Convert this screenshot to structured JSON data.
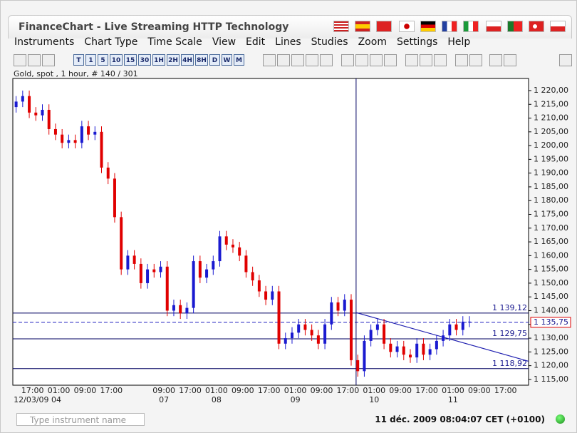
{
  "window": {
    "title": "FinanceChart - Live Streaming HTTP Technology"
  },
  "menu": [
    "Instruments",
    "Chart Type",
    "Time Scale",
    "View",
    "Edit",
    "Lines",
    "Studies",
    "Zoom",
    "Settings",
    "Help"
  ],
  "toolbar": {
    "timeframes": [
      "T",
      "1",
      "5",
      "10",
      "15",
      "30",
      "1H",
      "2H",
      "4H",
      "8H",
      "D",
      "W",
      "M"
    ]
  },
  "info": "Gold, spot , 1 hour, # 140 / 301",
  "chart_data": {
    "type": "candlestick",
    "x": [
      -5,
      -3,
      -1,
      1,
      3,
      5,
      7,
      9,
      11,
      13,
      15,
      17,
      19,
      21,
      23,
      25,
      27,
      29,
      31,
      33,
      35,
      37,
      39,
      41,
      43,
      45,
      47,
      49,
      51,
      53,
      55,
      57,
      59,
      61,
      63,
      65,
      67,
      69,
      71,
      73,
      75,
      77,
      79,
      81,
      83,
      85,
      87,
      89,
      91,
      93,
      95,
      97,
      99,
      101,
      103,
      105,
      107,
      109,
      111,
      113,
      115,
      117,
      119,
      121,
      123,
      125,
      127,
      129,
      131,
      133
    ],
    "open": [
      1214,
      1216,
      1218,
      1212,
      1211,
      1213,
      1206,
      1204,
      1201,
      1202,
      1201,
      1207,
      1204,
      1205,
      1192,
      1188,
      1174,
      1155,
      1160,
      1157,
      1150,
      1155,
      1154,
      1156,
      1140,
      1142,
      1139,
      1141,
      1158,
      1152,
      1155,
      1158,
      1167,
      1164,
      1163,
      1160,
      1154,
      1151,
      1147,
      1144,
      1147,
      1128,
      1130,
      1132,
      1135,
      1133,
      1131,
      1128,
      1135,
      1143,
      1140,
      1144,
      1122,
      1118,
      1129,
      1133,
      1135,
      1128,
      1125,
      1127,
      1124,
      1123,
      1128,
      1124,
      1126,
      1129,
      1131,
      1135,
      1133,
      1136
    ],
    "high": [
      1218,
      1220,
      1220,
      1214,
      1215,
      1215,
      1208,
      1206,
      1204,
      1204,
      1209,
      1209,
      1207,
      1207,
      1194,
      1190,
      1176,
      1162,
      1162,
      1159,
      1157,
      1157,
      1158,
      1158,
      1144,
      1144,
      1143,
      1160,
      1160,
      1157,
      1160,
      1169,
      1169,
      1166,
      1165,
      1162,
      1156,
      1153,
      1149,
      1149,
      1149,
      1132,
      1134,
      1137,
      1137,
      1135,
      1133,
      1137,
      1145,
      1145,
      1146,
      1146,
      1124,
      1131,
      1135,
      1137,
      1137,
      1130,
      1129,
      1129,
      1126,
      1130,
      1130,
      1128,
      1131,
      1133,
      1137,
      1137,
      1138,
      1138
    ],
    "low": [
      1212,
      1214,
      1210,
      1209,
      1209,
      1204,
      1202,
      1199,
      1199,
      1199,
      1199,
      1202,
      1202,
      1190,
      1186,
      1172,
      1153,
      1153,
      1155,
      1148,
      1148,
      1152,
      1152,
      1138,
      1138,
      1137,
      1137,
      1139,
      1150,
      1150,
      1153,
      1156,
      1162,
      1161,
      1158,
      1152,
      1149,
      1145,
      1142,
      1142,
      1126,
      1126,
      1128,
      1130,
      1131,
      1129,
      1126,
      1126,
      1133,
      1138,
      1138,
      1120,
      1116,
      1116,
      1127,
      1131,
      1126,
      1123,
      1123,
      1122,
      1121,
      1121,
      1122,
      1122,
      1124,
      1127,
      1129,
      1131,
      1131,
      1134
    ],
    "close": [
      1216,
      1218,
      1212,
      1211,
      1213,
      1206,
      1204,
      1201,
      1202,
      1201,
      1207,
      1204,
      1205,
      1192,
      1188,
      1174,
      1155,
      1160,
      1157,
      1150,
      1155,
      1154,
      1156,
      1140,
      1142,
      1139,
      1141,
      1158,
      1152,
      1155,
      1158,
      1167,
      1164,
      1163,
      1160,
      1154,
      1151,
      1147,
      1144,
      1147,
      1128,
      1130,
      1132,
      1135,
      1133,
      1131,
      1128,
      1135,
      1143,
      1140,
      1144,
      1122,
      1118,
      1129,
      1133,
      1135,
      1128,
      1125,
      1127,
      1124,
      1123,
      1128,
      1124,
      1126,
      1129,
      1131,
      1135,
      1133,
      1136,
      1136
    ],
    "up_color": "#1a1ad0",
    "down_color": "#e00000",
    "xlim": [
      -6,
      151
    ],
    "ylim": [
      1112.9,
      1224.4
    ],
    "yticks": [
      {
        "value": 1115,
        "label": "1 115,00"
      },
      {
        "value": 1120,
        "label": "1 120,00"
      },
      {
        "value": 1125,
        "label": "1 125,00"
      },
      {
        "value": 1130,
        "label": "1 130,00"
      },
      {
        "value": 1135,
        "label": "1 135,00"
      },
      {
        "value": 1140,
        "label": "1 140,00"
      },
      {
        "value": 1145,
        "label": "1 145,00"
      },
      {
        "value": 1150,
        "label": "1 150,00"
      },
      {
        "value": 1155,
        "label": "1 155,00"
      },
      {
        "value": 1160,
        "label": "1 160,00"
      },
      {
        "value": 1165,
        "label": "1 165,00"
      },
      {
        "value": 1170,
        "label": "1 170,00"
      },
      {
        "value": 1175,
        "label": "1 175,00"
      },
      {
        "value": 1180,
        "label": "1 180,00"
      },
      {
        "value": 1185,
        "label": "1 185,00"
      },
      {
        "value": 1190,
        "label": "1 190,00"
      },
      {
        "value": 1195,
        "label": "1 195,00"
      },
      {
        "value": 1200,
        "label": "1 200,00"
      },
      {
        "value": 1205,
        "label": "1 205,00"
      },
      {
        "value": 1210,
        "label": "1 210,00"
      },
      {
        "value": 1215,
        "label": "1 215,00"
      },
      {
        "value": 1220,
        "label": "1 220,00"
      }
    ],
    "xticks": [
      {
        "value": 0,
        "label": "17:00"
      },
      {
        "value": 8,
        "label": "01:00"
      },
      {
        "value": 16,
        "label": "09:00"
      },
      {
        "value": 24,
        "label": "17:00"
      },
      {
        "value": 40,
        "label": "09:00"
      },
      {
        "value": 48,
        "label": "17:00"
      },
      {
        "value": 56,
        "label": "01:00"
      },
      {
        "value": 64,
        "label": "09:00"
      },
      {
        "value": 72,
        "label": "17:00"
      },
      {
        "value": 80,
        "label": "01:00"
      },
      {
        "value": 88,
        "label": "09:00"
      },
      {
        "value": 96,
        "label": "17:00"
      },
      {
        "value": 104,
        "label": "01:00"
      },
      {
        "value": 112,
        "label": "09:00"
      },
      {
        "value": 120,
        "label": "17:00"
      },
      {
        "value": 128,
        "label": "01:00"
      },
      {
        "value": 136,
        "label": "09:00"
      },
      {
        "value": 144,
        "label": "17:00"
      }
    ],
    "date_ticks": [
      {
        "value": 1.5,
        "label": "12/03/09 04"
      },
      {
        "value": 40,
        "label": "07"
      },
      {
        "value": 56,
        "label": "08"
      },
      {
        "value": 80,
        "label": "09"
      },
      {
        "value": 104,
        "label": "10"
      },
      {
        "value": 128,
        "label": "11"
      }
    ],
    "lines": [
      {
        "value": 1139.12,
        "label": "1 139,12"
      },
      {
        "value": 1129.75,
        "label": "1 129,75"
      },
      {
        "value": 1118.92,
        "label": "1 118,92"
      }
    ],
    "current_price": {
      "value": 1135.75,
      "label": "1 135,75"
    },
    "trendline": {
      "x": [
        98.5,
        151
      ],
      "y": [
        1139.3,
        1121.6
      ]
    },
    "cursor_x": 98.5
  },
  "status": {
    "search_placeholder": "Type instrument name",
    "datetime": "11 déc. 2009 08:04:07 CET (+0100)"
  }
}
